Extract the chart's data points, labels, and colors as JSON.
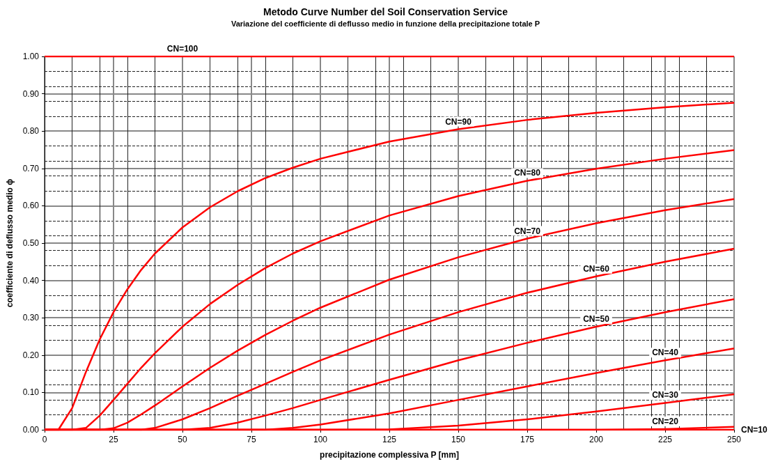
{
  "chart_data": {
    "type": "line",
    "title": "Metodo Curve Number del Soil Conservation Service",
    "subtitle": "Variazione del coefficiente di deflusso medio in funzione della precipitazione totale P",
    "xlabel": "precipitazione complessiva P [mm]",
    "ylabel": "coefficiente di deflusso medio ϕ",
    "x": [
      0,
      5,
      10,
      15,
      20,
      25,
      30,
      35,
      40,
      50,
      60,
      70,
      80,
      90,
      100,
      125,
      150,
      175,
      200,
      225,
      250
    ],
    "series": [
      {
        "color": "#ff0000",
        "values": [
          1,
          1,
          1,
          1,
          1,
          1,
          1,
          1,
          1,
          1,
          1,
          1,
          1,
          1,
          1,
          1,
          1,
          1,
          1,
          1,
          1
        ]
      },
      {
        "color": "#ff0000",
        "values": [
          0,
          0,
          0.058,
          0.155,
          0.242,
          0.315,
          0.376,
          0.428,
          0.472,
          0.542,
          0.596,
          0.639,
          0.674,
          0.702,
          0.726,
          0.772,
          0.805,
          0.83,
          0.849,
          0.864,
          0.876
        ]
      },
      {
        "color": "#ff0000",
        "values": [
          0,
          0,
          0,
          0.005,
          0.038,
          0.08,
          0.123,
          0.166,
          0.205,
          0.276,
          0.337,
          0.388,
          0.433,
          0.472,
          0.505,
          0.574,
          0.626,
          0.667,
          0.699,
          0.726,
          0.749
        ]
      },
      {
        "color": "#ff0000",
        "values": [
          0,
          0,
          0,
          0,
          0,
          0.004,
          0.019,
          0.041,
          0.065,
          0.116,
          0.166,
          0.212,
          0.254,
          0.292,
          0.327,
          0.402,
          0.462,
          0.512,
          0.553,
          0.588,
          0.618
        ]
      },
      {
        "color": "#ff0000",
        "values": [
          0,
          0,
          0,
          0,
          0,
          0,
          0,
          0,
          0.005,
          0.028,
          0.058,
          0.091,
          0.123,
          0.155,
          0.186,
          0.255,
          0.315,
          0.367,
          0.411,
          0.45,
          0.485
        ]
      },
      {
        "color": "#ff0000",
        "values": [
          0,
          0,
          0,
          0,
          0,
          0,
          0,
          0,
          0,
          0,
          0.005,
          0.019,
          0.038,
          0.058,
          0.08,
          0.134,
          0.186,
          0.233,
          0.276,
          0.315,
          0.35
        ]
      },
      {
        "color": "#ff0000",
        "values": [
          0,
          0,
          0,
          0,
          0,
          0,
          0,
          0,
          0,
          0,
          0,
          0,
          0,
          0.005,
          0.014,
          0.044,
          0.08,
          0.116,
          0.152,
          0.186,
          0.218
        ]
      },
      {
        "color": "#ff0000",
        "values": [
          0,
          0,
          0,
          0,
          0,
          0,
          0,
          0,
          0,
          0,
          0,
          0,
          0,
          0,
          0,
          0.001,
          0.011,
          0.028,
          0.049,
          0.072,
          0.095
        ]
      },
      {
        "color": "#ff0000",
        "values": [
          0,
          0,
          0,
          0,
          0,
          0,
          0,
          0,
          0,
          0,
          0,
          0,
          0,
          0,
          0,
          0,
          0,
          0,
          0,
          0.002,
          0.008
        ]
      },
      {
        "color": "#ff0000",
        "values": [
          0,
          0,
          0,
          0,
          0,
          0,
          0,
          0,
          0,
          0,
          0,
          0,
          0,
          0,
          0,
          0,
          0,
          0,
          0,
          0,
          0
        ]
      }
    ],
    "annotations": [
      {
        "text": "CN=100",
        "x": 50,
        "y": 1
      },
      {
        "text": "CN=90",
        "x": 150,
        "y": 0.805
      },
      {
        "text": "CN=80",
        "x": 175,
        "y": 0.667
      },
      {
        "text": "CN=70",
        "x": 175,
        "y": 0.512
      },
      {
        "text": "CN=60",
        "x": 200,
        "y": 0.411
      },
      {
        "text": "CN=50",
        "x": 200,
        "y": 0.276
      },
      {
        "text": "CN=40",
        "x": 225,
        "y": 0.186
      },
      {
        "text": "CN=30",
        "x": 225,
        "y": 0.072
      },
      {
        "text": "CN=20",
        "x": 225,
        "y": 0.002
      },
      {
        "text": "CN=10",
        "x": 250,
        "y": 0
      }
    ],
    "xlim": [
      0,
      250
    ],
    "xticks": [
      0,
      25,
      50,
      75,
      100,
      125,
      150,
      175,
      200,
      225,
      250
    ],
    "ylim": [
      0,
      1
    ],
    "yticks": [
      {
        "value": 0,
        "label": "0.00"
      },
      {
        "value": 0.1,
        "label": "0.10"
      },
      {
        "value": 0.2,
        "label": "0.20"
      },
      {
        "value": 0.3,
        "label": "0.30"
      },
      {
        "value": 0.4,
        "label": "0.40"
      },
      {
        "value": 0.5,
        "label": "0.50"
      },
      {
        "value": 0.6,
        "label": "0.60"
      },
      {
        "value": 0.7,
        "label": "0.70"
      },
      {
        "value": 0.8,
        "label": "0.80"
      },
      {
        "value": 0.9,
        "label": "0.90"
      },
      {
        "value": 1,
        "label": "1.00"
      }
    ],
    "grid": true,
    "marker": "none",
    "line_style": "solid"
  }
}
